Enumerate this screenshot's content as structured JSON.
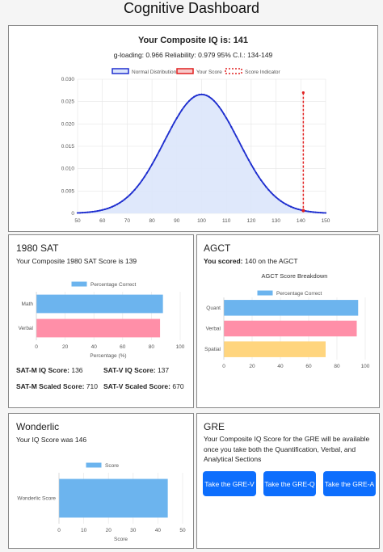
{
  "page_title": "Cognitive Dashboard",
  "iq_card": {
    "heading": "Your Composite IQ is: 141",
    "stats": "g-loading: 0.966   Reliability: 0.979   95% C.I.: 134-149",
    "legend": [
      "Normal Distribution",
      "Your Score",
      "Score Indicator"
    ],
    "colors": {
      "curve": "#1f2fcf",
      "fill": "#dbe5fb",
      "score": "#e02020"
    }
  },
  "sat_card": {
    "heading": "1980 SAT",
    "subtitle": "Your Composite 1980 SAT Score is 139",
    "legend": "Percentage Correct",
    "xlabel": "Percentage (%)",
    "stats": [
      {
        "label": "SAT-M IQ Score:",
        "value": "136"
      },
      {
        "label": "SAT-V IQ Score:",
        "value": "137"
      },
      {
        "label": "SAT-M Scaled Score:",
        "value": "710"
      },
      {
        "label": "SAT-V Scaled Score:",
        "value": "670"
      }
    ]
  },
  "agct_card": {
    "heading": "AGCT",
    "scored_label": "You scored:",
    "scored_text": " 140 on the AGCT",
    "chart_title": "AGCT Score Breakdown",
    "legend": "Percentage Correct"
  },
  "wonderlic_card": {
    "heading": "Wonderlic",
    "subtitle": "Your IQ Score was 146",
    "legend": "Score",
    "xlabel": "Score"
  },
  "gre_card": {
    "heading": "GRE",
    "text": "Your Composite IQ Score for the GRE will be available once you take both the Quantification, Verbal, and Analytical Sections",
    "buttons": [
      "Take the GRE-V",
      "Take the GRE-Q",
      "Take the GRE-A"
    ]
  },
  "chart_data": [
    {
      "type": "line",
      "title": "",
      "series": [
        {
          "name": "Normal Distribution",
          "mean": 100,
          "sd": 15
        },
        {
          "name": "Your Score",
          "x": 141
        },
        {
          "name": "Score Indicator",
          "x": 141
        }
      ],
      "xlim": [
        50,
        150
      ],
      "xticks": [
        "50",
        "60",
        "70",
        "80",
        "90",
        "100",
        "110",
        "120",
        "130",
        "140",
        "150"
      ],
      "ylim": [
        0,
        0.03
      ],
      "yticks": [
        "0",
        "0.005",
        "0.010",
        "0.015",
        "0.020",
        "0.025",
        "0.030"
      ],
      "grid": true,
      "legend": "top"
    },
    {
      "type": "bar",
      "orientation": "horizontal",
      "categories": [
        "Math",
        "Verbal"
      ],
      "series": [
        {
          "name": "Percentage Correct",
          "values": [
            88,
            86
          ]
        }
      ],
      "xlim": [
        0,
        100
      ],
      "xticks": [
        "0",
        "20",
        "40",
        "60",
        "80",
        "100"
      ],
      "xlabel": "Percentage (%)",
      "colors": [
        "#6cb4ee",
        "#ff8fa8"
      ]
    },
    {
      "type": "bar",
      "orientation": "horizontal",
      "title": "AGCT Score Breakdown",
      "categories": [
        "Quant",
        "Verbal",
        "Spatial"
      ],
      "series": [
        {
          "name": "Percentage Correct",
          "values": [
            95,
            94,
            72
          ]
        }
      ],
      "xlim": [
        0,
        100
      ],
      "xticks": [
        "0",
        "20",
        "40",
        "60",
        "80",
        "100"
      ],
      "colors": [
        "#6cb4ee",
        "#ff8fa8",
        "#ffd57e"
      ]
    },
    {
      "type": "bar",
      "orientation": "horizontal",
      "categories": [
        "Wonderlic Score"
      ],
      "series": [
        {
          "name": "Score",
          "values": [
            44
          ]
        }
      ],
      "xlim": [
        0,
        50
      ],
      "xticks": [
        "0",
        "10",
        "20",
        "30",
        "40",
        "50"
      ],
      "xlabel": "Score",
      "colors": [
        "#6cb4ee"
      ]
    }
  ]
}
